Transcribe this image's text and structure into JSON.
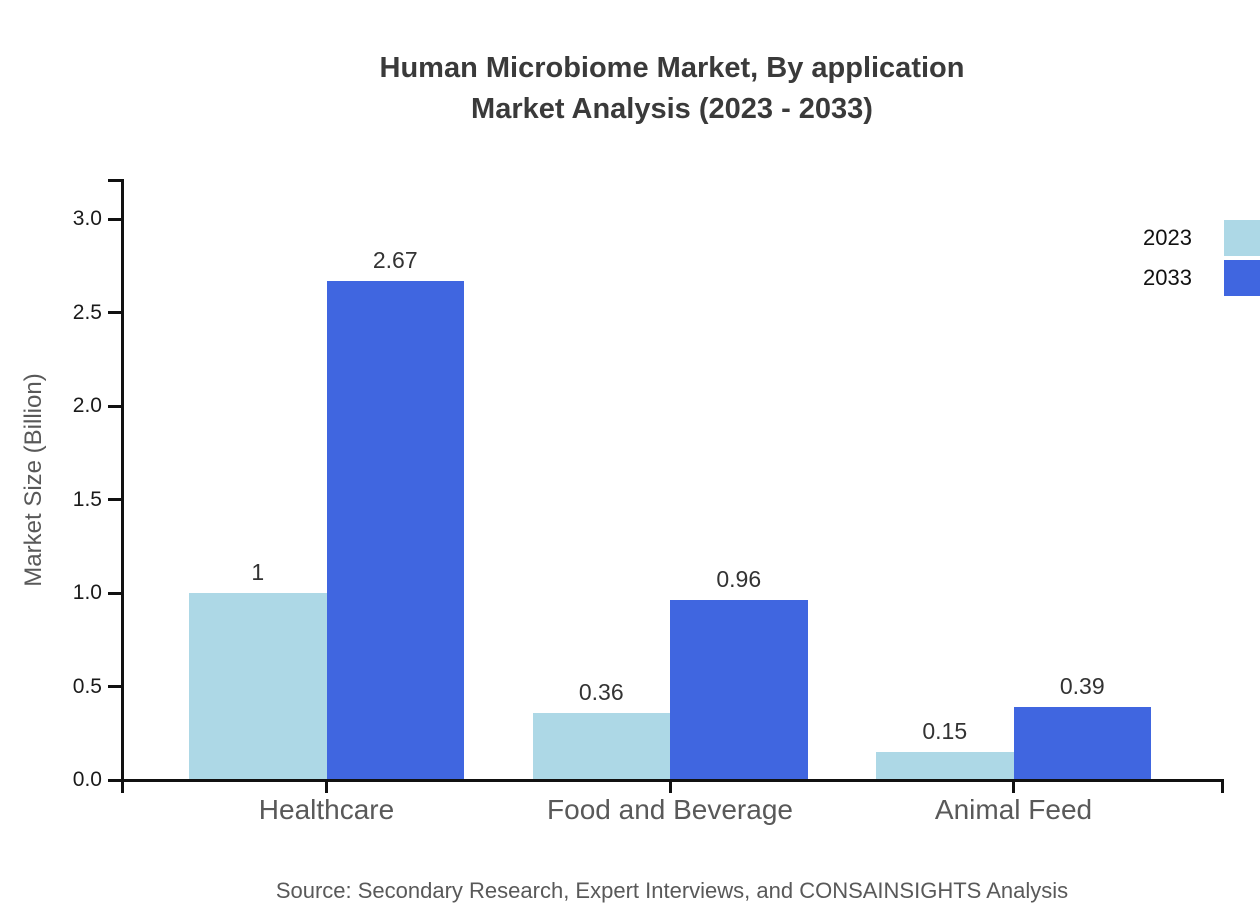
{
  "title": {
    "line1": "Human Microbiome Market, By application",
    "line2": "Market Analysis (2023 - 2033)"
  },
  "source": "Source: Secondary Research, Expert Interviews, and CONSAINSIGHTS Analysis",
  "chart_data": {
    "type": "bar",
    "title": "Human Microbiome Market, By application Market Analysis (2023 - 2033)",
    "categories": [
      "Healthcare",
      "Food and Beverage",
      "Animal Feed"
    ],
    "series": [
      {
        "name": "2023",
        "color": "#ADD8E6",
        "values": [
          1,
          0.36,
          0.15
        ],
        "labels": [
          "1",
          "0.36",
          "0.15"
        ]
      },
      {
        "name": "2033",
        "color": "#4066E0",
        "values": [
          2.67,
          0.96,
          0.39
        ],
        "labels": [
          "2.67",
          "0.96",
          "0.39"
        ]
      }
    ],
    "xlabel": "",
    "ylabel": "Market Size (Billion)",
    "ylim": [
      0,
      3.2
    ],
    "yticks": [
      0.0,
      0.5,
      1.0,
      1.5,
      2.0,
      2.5,
      3.0
    ],
    "grid": false,
    "legend_position": "top-right",
    "axis_color": "#111111"
  }
}
